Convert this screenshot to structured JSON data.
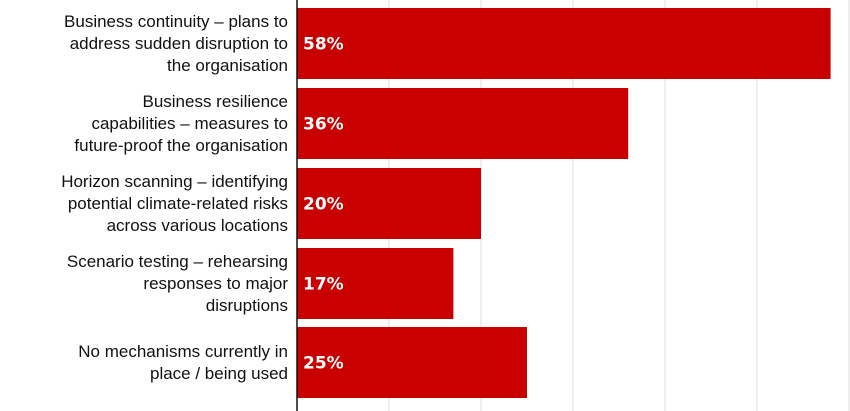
{
  "chart_data": {
    "type": "bar",
    "orientation": "horizontal",
    "title": "",
    "xlabel": "",
    "ylabel": "",
    "categories": [
      "Business continuity – plans to\naddress sudden disruption to\nthe organisation",
      "Business resilience\ncapabilities – measures to\nfuture-proof the organisation",
      "Horizon scanning – identifying\npotential climate-related risks\nacross various locations",
      "Scenario testing – rehearsing\nresponses to major\ndisruptions",
      "No mechanisms currently in\nplace / being used"
    ],
    "values": [
      58,
      36,
      20,
      17,
      25
    ],
    "data_labels": [
      "58%",
      "36%",
      "20%",
      "17%",
      "25%"
    ],
    "xlim": [
      0,
      60
    ],
    "grid": true,
    "grid_step": 10,
    "bar_color": "#c80000"
  }
}
